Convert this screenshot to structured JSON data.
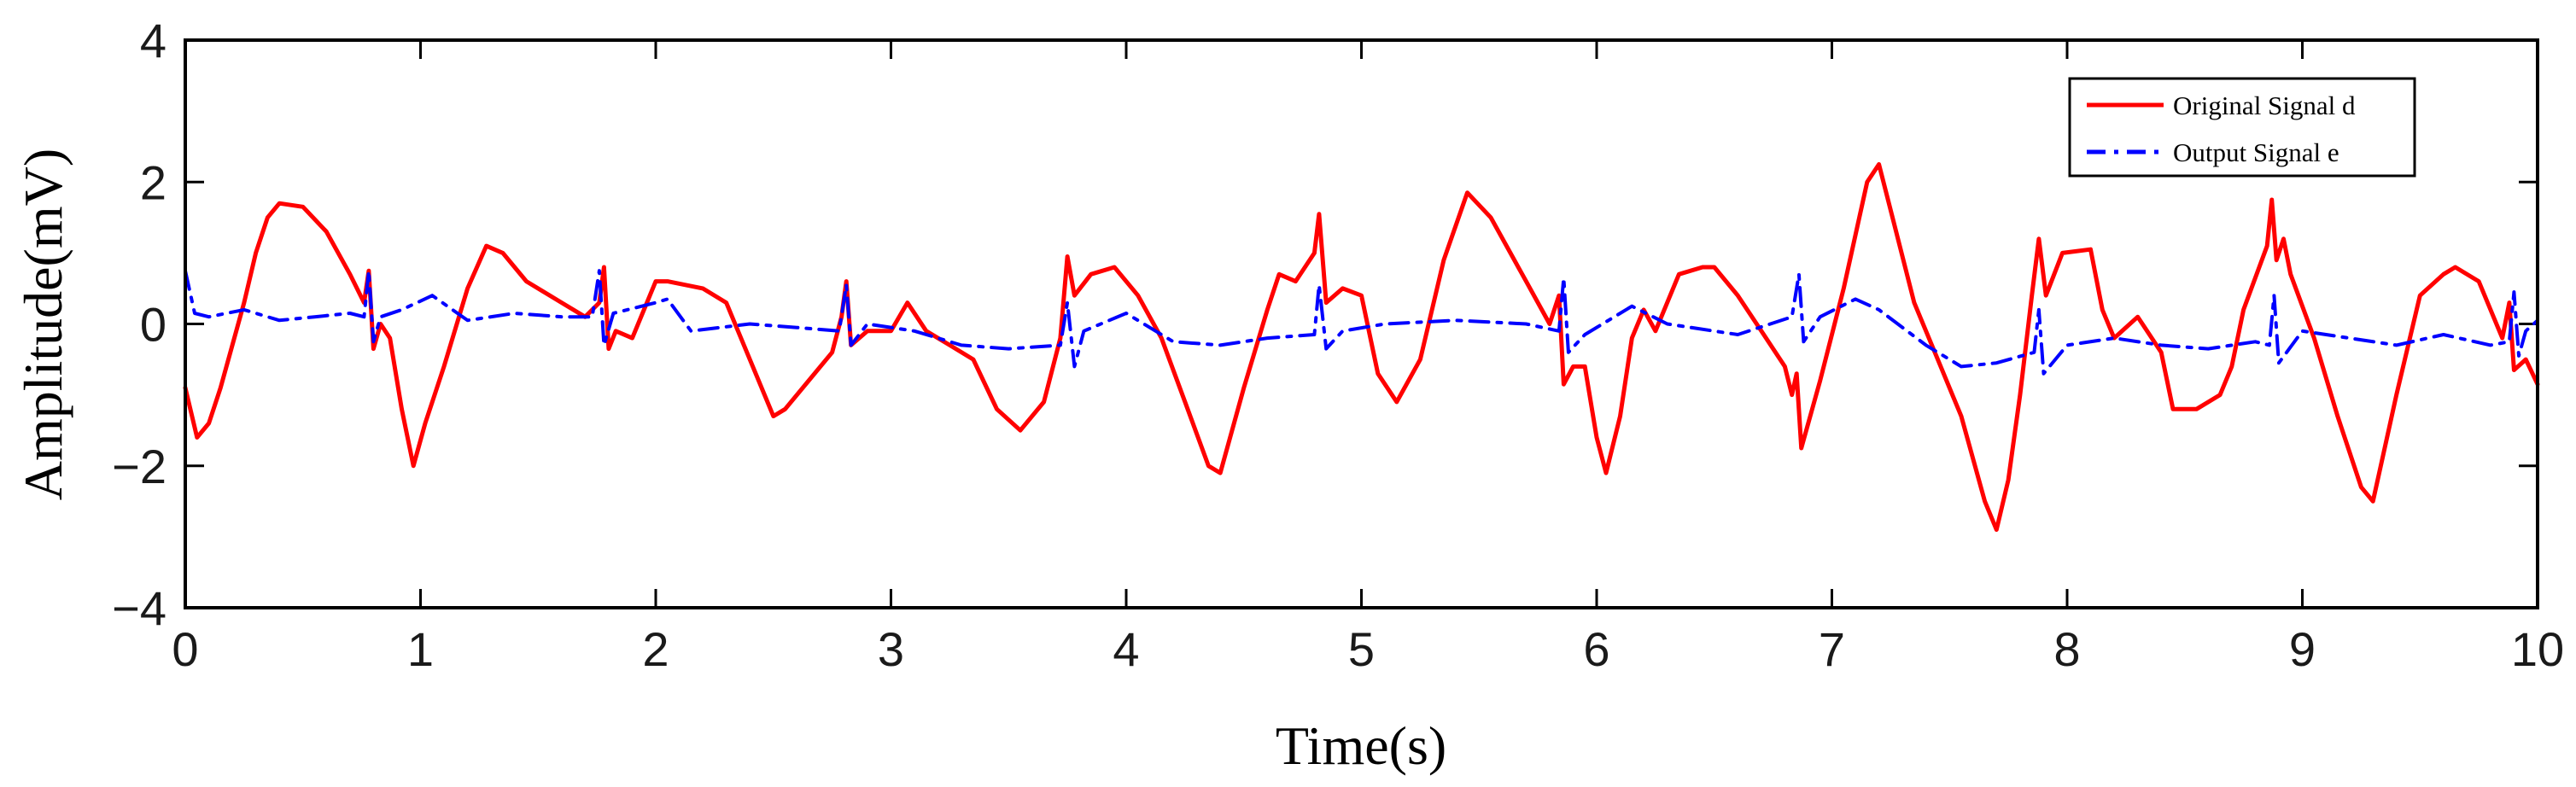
{
  "chart_data": {
    "type": "line",
    "title": "",
    "xlabel": "Time(s)",
    "ylabel": "Amplitude(mV)",
    "xlim": [
      0,
      10
    ],
    "ylim": [
      -4,
      4
    ],
    "xticks": [
      0,
      1,
      2,
      3,
      4,
      5,
      6,
      7,
      8,
      9,
      10
    ],
    "yticks": [
      -4,
      -2,
      0,
      2,
      4
    ],
    "ytick_labels": [
      "−4",
      "−2",
      "0",
      "2",
      "4"
    ],
    "grid": false,
    "legend_position": "top-right",
    "series": [
      {
        "name": "Original Signal d",
        "color": "#ff0000",
        "style": "solid",
        "points": [
          [
            0.0,
            -0.9
          ],
          [
            0.05,
            -1.6
          ],
          [
            0.1,
            -1.4
          ],
          [
            0.15,
            -0.9
          ],
          [
            0.2,
            -0.3
          ],
          [
            0.25,
            0.3
          ],
          [
            0.3,
            1.0
          ],
          [
            0.35,
            1.5
          ],
          [
            0.4,
            1.7
          ],
          [
            0.5,
            1.65
          ],
          [
            0.6,
            1.3
          ],
          [
            0.7,
            0.7
          ],
          [
            0.76,
            0.3
          ],
          [
            0.78,
            0.75
          ],
          [
            0.8,
            -0.35
          ],
          [
            0.83,
            0.0
          ],
          [
            0.87,
            -0.2
          ],
          [
            0.92,
            -1.2
          ],
          [
            0.97,
            -2.0
          ],
          [
            1.02,
            -1.4
          ],
          [
            1.1,
            -0.6
          ],
          [
            1.2,
            0.5
          ],
          [
            1.28,
            1.1
          ],
          [
            1.35,
            1.0
          ],
          [
            1.45,
            0.6
          ],
          [
            1.6,
            0.3
          ],
          [
            1.7,
            0.1
          ],
          [
            1.76,
            0.3
          ],
          [
            1.78,
            0.8
          ],
          [
            1.8,
            -0.35
          ],
          [
            1.83,
            -0.1
          ],
          [
            1.9,
            -0.2
          ],
          [
            2.0,
            0.6
          ],
          [
            2.05,
            0.6
          ],
          [
            2.2,
            0.5
          ],
          [
            2.3,
            0.3
          ],
          [
            2.4,
            -0.5
          ],
          [
            2.5,
            -1.3
          ],
          [
            2.55,
            -1.2
          ],
          [
            2.65,
            -0.8
          ],
          [
            2.75,
            -0.4
          ],
          [
            2.79,
            0.1
          ],
          [
            2.81,
            0.6
          ],
          [
            2.83,
            -0.3
          ],
          [
            2.9,
            -0.1
          ],
          [
            3.0,
            -0.1
          ],
          [
            3.07,
            0.3
          ],
          [
            3.15,
            -0.1
          ],
          [
            3.25,
            -0.3
          ],
          [
            3.35,
            -0.5
          ],
          [
            3.45,
            -1.2
          ],
          [
            3.55,
            -1.5
          ],
          [
            3.65,
            -1.1
          ],
          [
            3.72,
            -0.2
          ],
          [
            3.75,
            0.95
          ],
          [
            3.78,
            0.4
          ],
          [
            3.85,
            0.7
          ],
          [
            3.95,
            0.8
          ],
          [
            4.05,
            0.4
          ],
          [
            4.15,
            -0.2
          ],
          [
            4.25,
            -1.1
          ],
          [
            4.35,
            -2.0
          ],
          [
            4.4,
            -2.1
          ],
          [
            4.5,
            -0.9
          ],
          [
            4.6,
            0.2
          ],
          [
            4.65,
            0.7
          ],
          [
            4.72,
            0.6
          ],
          [
            4.8,
            1.0
          ],
          [
            4.82,
            1.55
          ],
          [
            4.85,
            0.3
          ],
          [
            4.92,
            0.5
          ],
          [
            5.0,
            0.4
          ],
          [
            5.07,
            -0.7
          ],
          [
            5.15,
            -1.1
          ],
          [
            5.25,
            -0.5
          ],
          [
            5.35,
            0.9
          ],
          [
            5.45,
            1.85
          ],
          [
            5.55,
            1.5
          ],
          [
            5.7,
            0.6
          ],
          [
            5.8,
            0.0
          ],
          [
            5.84,
            0.4
          ],
          [
            5.86,
            -0.85
          ],
          [
            5.9,
            -0.6
          ],
          [
            5.95,
            -0.6
          ],
          [
            6.0,
            -1.6
          ],
          [
            6.04,
            -2.1
          ],
          [
            6.1,
            -1.3
          ],
          [
            6.15,
            -0.2
          ],
          [
            6.2,
            0.2
          ],
          [
            6.25,
            -0.1
          ],
          [
            6.35,
            0.7
          ],
          [
            6.45,
            0.8
          ],
          [
            6.5,
            0.8
          ],
          [
            6.6,
            0.4
          ],
          [
            6.7,
            -0.1
          ],
          [
            6.8,
            -0.6
          ],
          [
            6.83,
            -1.0
          ],
          [
            6.85,
            -0.7
          ],
          [
            6.87,
            -1.75
          ],
          [
            6.95,
            -0.8
          ],
          [
            7.05,
            0.5
          ],
          [
            7.15,
            2.0
          ],
          [
            7.2,
            2.25
          ],
          [
            7.25,
            1.6
          ],
          [
            7.35,
            0.3
          ],
          [
            7.45,
            -0.5
          ],
          [
            7.55,
            -1.3
          ],
          [
            7.65,
            -2.5
          ],
          [
            7.7,
            -2.9
          ],
          [
            7.75,
            -2.2
          ],
          [
            7.8,
            -1.0
          ],
          [
            7.85,
            0.4
          ],
          [
            7.88,
            1.2
          ],
          [
            7.91,
            0.4
          ],
          [
            7.98,
            1.0
          ],
          [
            8.1,
            1.05
          ],
          [
            8.15,
            0.2
          ],
          [
            8.2,
            -0.2
          ],
          [
            8.3,
            0.1
          ],
          [
            8.4,
            -0.4
          ],
          [
            8.45,
            -1.2
          ],
          [
            8.55,
            -1.2
          ],
          [
            8.65,
            -1.0
          ],
          [
            8.7,
            -0.6
          ],
          [
            8.75,
            0.2
          ],
          [
            8.85,
            1.1
          ],
          [
            8.87,
            1.75
          ],
          [
            8.89,
            0.9
          ],
          [
            8.92,
            1.2
          ],
          [
            8.95,
            0.7
          ],
          [
            9.05,
            -0.2
          ],
          [
            9.15,
            -1.3
          ],
          [
            9.25,
            -2.3
          ],
          [
            9.3,
            -2.5
          ],
          [
            9.4,
            -1.0
          ],
          [
            9.5,
            0.4
          ],
          [
            9.6,
            0.7
          ],
          [
            9.65,
            0.8
          ],
          [
            9.75,
            0.6
          ],
          [
            9.85,
            -0.2
          ],
          [
            9.88,
            0.3
          ],
          [
            9.9,
            -0.65
          ],
          [
            9.95,
            -0.5
          ],
          [
            10.0,
            -0.85
          ]
        ]
      },
      {
        "name": "Output Signal e",
        "color": "#0000ff",
        "style": "dashdot",
        "points": [
          [
            0.0,
            0.75
          ],
          [
            0.04,
            0.15
          ],
          [
            0.1,
            0.1
          ],
          [
            0.25,
            0.2
          ],
          [
            0.4,
            0.05
          ],
          [
            0.55,
            0.1
          ],
          [
            0.7,
            0.15
          ],
          [
            0.76,
            0.1
          ],
          [
            0.78,
            0.75
          ],
          [
            0.8,
            -0.25
          ],
          [
            0.83,
            0.1
          ],
          [
            0.92,
            0.2
          ],
          [
            1.05,
            0.4
          ],
          [
            1.2,
            0.05
          ],
          [
            1.4,
            0.15
          ],
          [
            1.6,
            0.1
          ],
          [
            1.73,
            0.1
          ],
          [
            1.76,
            0.75
          ],
          [
            1.78,
            -0.3
          ],
          [
            1.82,
            0.15
          ],
          [
            2.0,
            0.3
          ],
          [
            2.05,
            0.35
          ],
          [
            2.15,
            -0.1
          ],
          [
            2.4,
            0.0
          ],
          [
            2.6,
            -0.05
          ],
          [
            2.78,
            -0.1
          ],
          [
            2.81,
            0.55
          ],
          [
            2.83,
            -0.3
          ],
          [
            2.9,
            0.0
          ],
          [
            3.1,
            -0.1
          ],
          [
            3.3,
            -0.3
          ],
          [
            3.5,
            -0.35
          ],
          [
            3.72,
            -0.3
          ],
          [
            3.75,
            0.3
          ],
          [
            3.78,
            -0.6
          ],
          [
            3.82,
            -0.1
          ],
          [
            4.0,
            0.15
          ],
          [
            4.2,
            -0.25
          ],
          [
            4.4,
            -0.3
          ],
          [
            4.6,
            -0.2
          ],
          [
            4.8,
            -0.15
          ],
          [
            4.82,
            0.55
          ],
          [
            4.85,
            -0.35
          ],
          [
            4.92,
            -0.1
          ],
          [
            5.1,
            0.0
          ],
          [
            5.4,
            0.05
          ],
          [
            5.7,
            0.0
          ],
          [
            5.84,
            -0.1
          ],
          [
            5.86,
            0.65
          ],
          [
            5.88,
            -0.4
          ],
          [
            5.95,
            -0.15
          ],
          [
            6.15,
            0.25
          ],
          [
            6.3,
            0.0
          ],
          [
            6.6,
            -0.15
          ],
          [
            6.83,
            0.1
          ],
          [
            6.86,
            0.7
          ],
          [
            6.88,
            -0.25
          ],
          [
            6.95,
            0.1
          ],
          [
            7.1,
            0.35
          ],
          [
            7.2,
            0.2
          ],
          [
            7.4,
            -0.3
          ],
          [
            7.55,
            -0.6
          ],
          [
            7.7,
            -0.55
          ],
          [
            7.86,
            -0.4
          ],
          [
            7.88,
            0.2
          ],
          [
            7.9,
            -0.7
          ],
          [
            8.0,
            -0.3
          ],
          [
            8.2,
            -0.2
          ],
          [
            8.4,
            -0.3
          ],
          [
            8.6,
            -0.35
          ],
          [
            8.8,
            -0.25
          ],
          [
            8.86,
            -0.3
          ],
          [
            8.88,
            0.4
          ],
          [
            8.9,
            -0.55
          ],
          [
            9.0,
            -0.1
          ],
          [
            9.2,
            -0.2
          ],
          [
            9.4,
            -0.3
          ],
          [
            9.6,
            -0.15
          ],
          [
            9.8,
            -0.3
          ],
          [
            9.88,
            -0.25
          ],
          [
            9.9,
            0.45
          ],
          [
            9.92,
            -0.45
          ],
          [
            9.95,
            -0.1
          ],
          [
            10.0,
            0.05
          ]
        ]
      }
    ]
  }
}
